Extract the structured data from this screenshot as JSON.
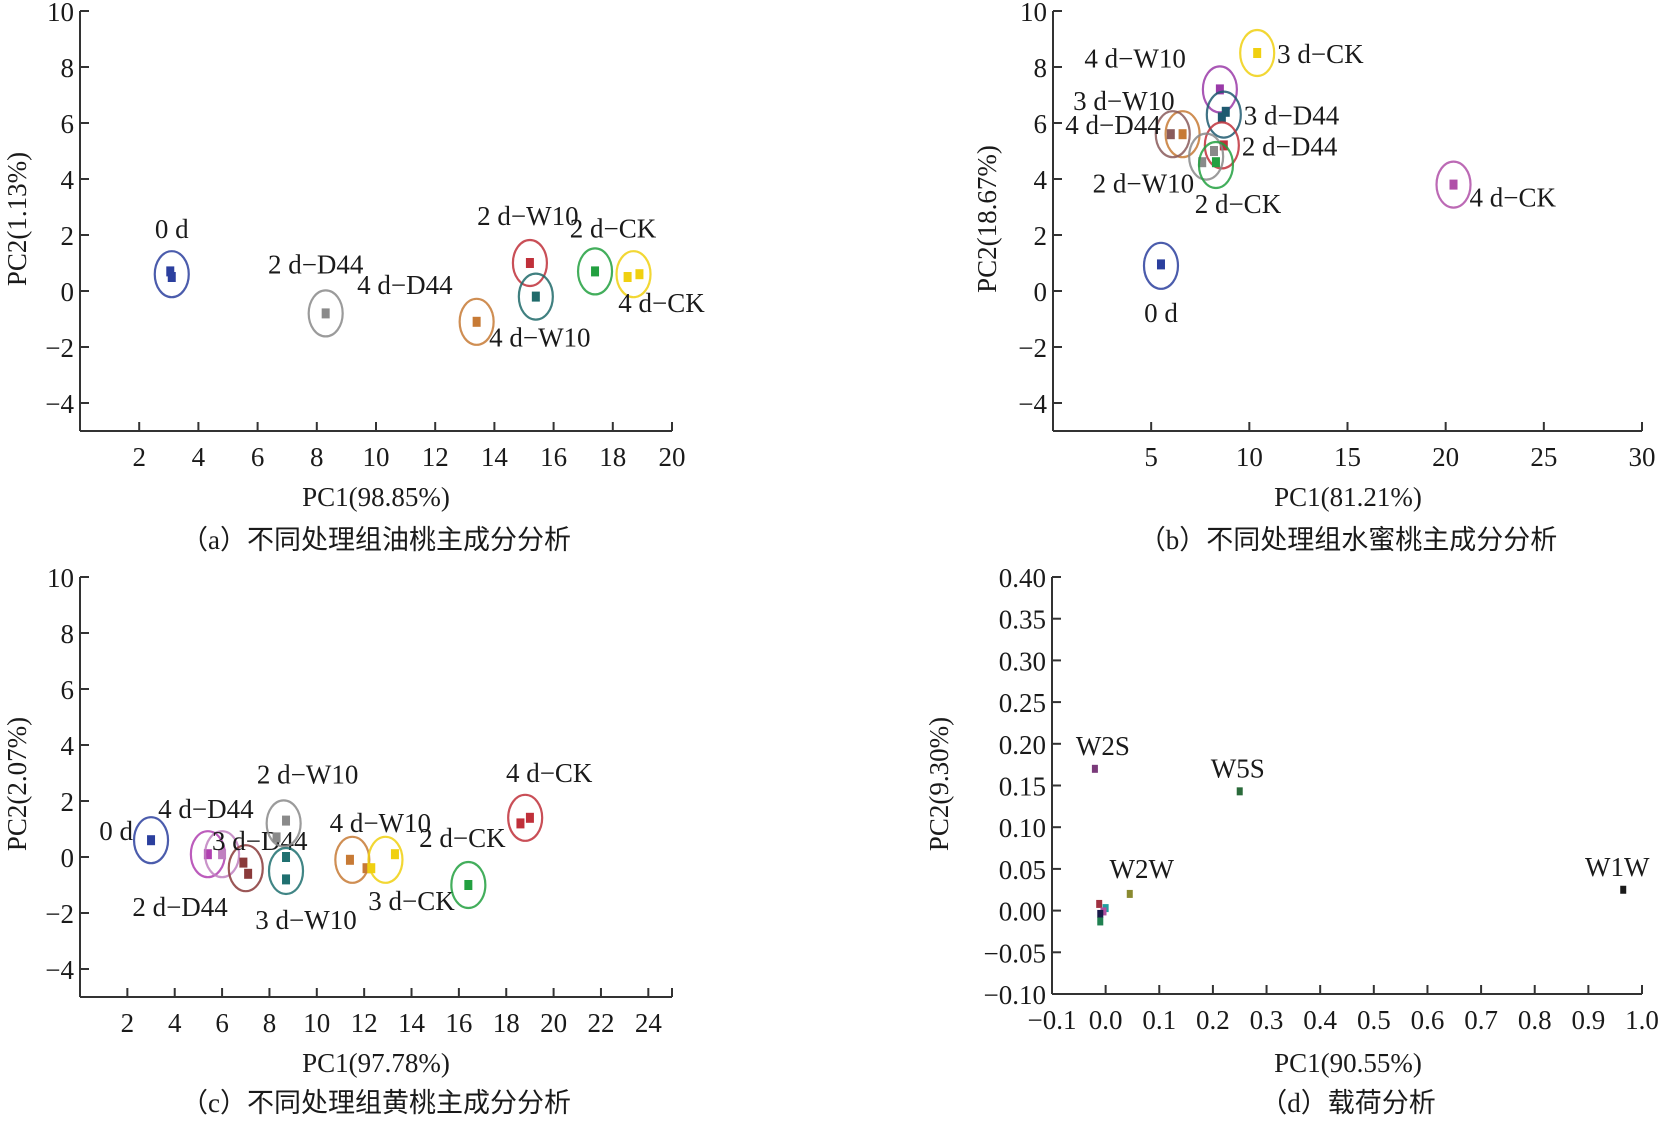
{
  "chart_data": [
    {
      "type": "scatter",
      "panel": "a",
      "caption": "（a）不同处理组油桃主成分分析",
      "xlabel": "PC1(98.85%)",
      "ylabel": "PC2(1.13%)",
      "xlim": [
        0,
        20
      ],
      "ylim": [
        -5,
        10
      ],
      "xticks": [
        2,
        4,
        6,
        8,
        10,
        12,
        14,
        16,
        18,
        20
      ],
      "yticks": [
        -4,
        -2,
        0,
        2,
        4,
        6,
        8,
        10
      ],
      "ytick_labels": [
        "−4",
        "−2",
        "0",
        "2",
        "4",
        "6",
        "8",
        "10"
      ],
      "groups": [
        {
          "name": "0 d",
          "color": "#2b3f9e",
          "center": [
            3.1,
            0.6
          ],
          "points": [
            [
              3.05,
              0.7
            ],
            [
              3.1,
              0.5
            ]
          ]
        },
        {
          "name": "2 d−D44",
          "color": "#8a8a8a",
          "center": [
            8.3,
            -0.8
          ],
          "points": [
            [
              8.3,
              -0.8
            ]
          ]
        },
        {
          "name": "4 d−D44",
          "color": "#c77a35",
          "center": [
            13.4,
            -1.1
          ],
          "points": [
            [
              13.4,
              -1.1
            ]
          ]
        },
        {
          "name": "2 d−W10",
          "color": "#c0303a",
          "center": [
            15.2,
            1.0
          ],
          "points": [
            [
              15.2,
              1.0
            ]
          ]
        },
        {
          "name": "4 d−W10",
          "color": "#1f6a6a",
          "center": [
            15.4,
            -0.2
          ],
          "points": [
            [
              15.4,
              -0.2
            ]
          ]
        },
        {
          "name": "2 d−CK",
          "color": "#22a040",
          "center": [
            17.4,
            0.7
          ],
          "points": [
            [
              17.4,
              0.7
            ]
          ]
        },
        {
          "name": "4 d−CK",
          "color": "#f0d010",
          "center": [
            18.7,
            0.6
          ],
          "points": [
            [
              18.5,
              0.5
            ],
            [
              18.9,
              0.6
            ]
          ]
        }
      ]
    },
    {
      "type": "scatter",
      "panel": "b",
      "caption": "（b）不同处理组水蜜桃主成分分析",
      "xlabel": "PC1(81.21%)",
      "ylabel": "PC2(18.67%)",
      "xlim": [
        0,
        30
      ],
      "ylim": [
        -5,
        10
      ],
      "xticks": [
        5,
        10,
        15,
        20,
        25,
        30
      ],
      "yticks": [
        -4,
        -2,
        0,
        2,
        4,
        6,
        8,
        10
      ],
      "ytick_labels": [
        "−4",
        "−2",
        "0",
        "2",
        "4",
        "6",
        "8",
        "10"
      ],
      "groups": [
        {
          "name": "0 d",
          "color": "#2b3f9e",
          "center": [
            5.5,
            0.9
          ],
          "points": [
            [
              5.5,
              0.95
            ]
          ]
        },
        {
          "name": "3 d−CK",
          "color": "#f0d010",
          "center": [
            10.4,
            8.5
          ],
          "points": [
            [
              10.4,
              8.5
            ]
          ]
        },
        {
          "name": "4 d−W10",
          "color": "#9a3aa8",
          "center": [
            8.5,
            7.2
          ],
          "points": [
            [
              8.5,
              7.2
            ]
          ]
        },
        {
          "name": "3 d−D44",
          "color": "#1f5a70",
          "center": [
            8.7,
            6.3
          ],
          "points": [
            [
              8.6,
              6.2
            ],
            [
              8.8,
              6.4
            ]
          ]
        },
        {
          "name": "3 d−W10",
          "color": "#c77a35",
          "center": [
            6.6,
            5.6
          ],
          "points": [
            [
              6.6,
              5.6
            ]
          ]
        },
        {
          "name": "4 d−D44",
          "color": "#8a5a5a",
          "center": [
            6.1,
            5.6
          ],
          "points": [
            [
              6.0,
              5.6
            ]
          ]
        },
        {
          "name": "2 d−D44",
          "color": "#c0303a",
          "center": [
            8.6,
            5.2
          ],
          "points": [
            [
              8.7,
              5.2
            ]
          ]
        },
        {
          "name": "2 d−W10",
          "color": "#8a8a8a",
          "center": [
            7.8,
            4.8
          ],
          "points": [
            [
              7.6,
              4.6
            ],
            [
              8.2,
              5.0
            ]
          ]
        },
        {
          "name": "2 d−CK",
          "color": "#22a040",
          "center": [
            8.3,
            4.5
          ],
          "points": [
            [
              8.3,
              4.6
            ]
          ]
        },
        {
          "name": "4 d−CK",
          "color": "#b050a8",
          "center": [
            20.4,
            3.8
          ],
          "points": [
            [
              20.4,
              3.8
            ]
          ]
        }
      ]
    },
    {
      "type": "scatter",
      "panel": "c",
      "caption": "（c）不同处理组黄桃主成分分析",
      "xlabel": "PC1(97.78%)",
      "ylabel": "PC2(2.07%)",
      "xlim": [
        0,
        25
      ],
      "ylim": [
        -5,
        10
      ],
      "xticks": [
        2,
        4,
        6,
        8,
        10,
        12,
        14,
        16,
        18,
        20,
        22,
        24
      ],
      "yticks": [
        -4,
        -2,
        0,
        2,
        4,
        6,
        8,
        10
      ],
      "ytick_labels": [
        "−4",
        "−2",
        "0",
        "2",
        "4",
        "6",
        "8",
        "10"
      ],
      "groups": [
        {
          "name": "0 d",
          "color": "#2b3f9e",
          "center": [
            3.0,
            0.6
          ],
          "points": [
            [
              3.0,
              0.6
            ]
          ]
        },
        {
          "name": "4 d−D44",
          "color": "#b040b0",
          "center": [
            5.4,
            0.1
          ],
          "points": [
            [
              5.4,
              0.1
            ]
          ]
        },
        {
          "name": "2 d−D44",
          "color": "#c080c0",
          "center": [
            6.0,
            0.1
          ],
          "points": [
            [
              6.0,
              0.1
            ]
          ]
        },
        {
          "name": "3 d−D44",
          "color": "#8a3a3a",
          "center": [
            7.0,
            -0.4
          ],
          "points": [
            [
              6.9,
              -0.2
            ],
            [
              7.1,
              -0.6
            ]
          ]
        },
        {
          "name": "2 d−W10",
          "color": "#8a8a8a",
          "center": [
            8.6,
            1.2
          ],
          "points": [
            [
              8.7,
              1.3
            ],
            [
              8.3,
              0.7
            ]
          ]
        },
        {
          "name": "3 d−W10",
          "color": "#1f7070",
          "center": [
            8.7,
            -0.5
          ],
          "points": [
            [
              8.7,
              0.0
            ],
            [
              8.7,
              -0.8
            ]
          ]
        },
        {
          "name": "4 d−W10",
          "color": "#c77a35",
          "center": [
            11.5,
            -0.1
          ],
          "points": [
            [
              11.4,
              -0.1
            ],
            [
              12.1,
              -0.4
            ]
          ]
        },
        {
          "name": "3 d−CK",
          "color": "#f0d010",
          "center": [
            12.9,
            -0.1
          ],
          "points": [
            [
              13.3,
              0.1
            ],
            [
              12.3,
              -0.4
            ]
          ]
        },
        {
          "name": "2 d−CK",
          "color": "#22a040",
          "center": [
            16.4,
            -1.0
          ],
          "points": [
            [
              16.4,
              -1.0
            ]
          ]
        },
        {
          "name": "4 d−CK",
          "color": "#c0303a",
          "center": [
            18.8,
            1.4
          ],
          "points": [
            [
              18.6,
              1.2
            ],
            [
              19.0,
              1.4
            ]
          ]
        }
      ]
    },
    {
      "type": "scatter",
      "panel": "d",
      "caption": "（d）载荷分析",
      "xlabel": "PC1(90.55%)",
      "ylabel": "PC2(9.30%)",
      "xlim": [
        -0.1,
        1.0
      ],
      "ylim": [
        -0.1,
        0.4
      ],
      "xticks": [
        -0.1,
        0.0,
        0.1,
        0.2,
        0.3,
        0.4,
        0.5,
        0.6,
        0.7,
        0.8,
        0.9,
        1.0
      ],
      "xtick_labels": [
        "−0.1",
        "0.0",
        "0.1",
        "0.2",
        "0.3",
        "0.4",
        "0.5",
        "0.6",
        "0.7",
        "0.8",
        "0.9",
        "1.0"
      ],
      "yticks": [
        -0.1,
        -0.05,
        0.0,
        0.05,
        0.1,
        0.15,
        0.2,
        0.25,
        0.3,
        0.35,
        0.4
      ],
      "ytick_labels": [
        "−0.10",
        "−0.05",
        "0.00",
        "0.05",
        "0.10",
        "0.15",
        "0.20",
        "0.25",
        "0.30",
        "0.35",
        "0.40"
      ],
      "points": [
        {
          "name": "W2S",
          "color": "#7a3a7a",
          "x": -0.02,
          "y": 0.17,
          "labeled": true
        },
        {
          "name": "W5S",
          "color": "#2a6a3a",
          "x": 0.25,
          "y": 0.143,
          "labeled": true
        },
        {
          "name": "W2W",
          "color": "#8a8a30",
          "x": 0.045,
          "y": 0.02,
          "labeled": true
        },
        {
          "name": "W1W",
          "color": "#1a1a1a",
          "x": 0.965,
          "y": 0.025,
          "labeled": true
        },
        {
          "name": "",
          "color": "#a03040",
          "x": -0.012,
          "y": 0.008,
          "labeled": false
        },
        {
          "name": "",
          "color": "#20a0a0",
          "x": 0.0,
          "y": 0.003,
          "labeled": false
        },
        {
          "name": "",
          "color": "#b050a0",
          "x": -0.004,
          "y": -0.001,
          "labeled": false
        },
        {
          "name": "",
          "color": "#1a1a4a",
          "x": -0.01,
          "y": -0.004,
          "labeled": false
        },
        {
          "name": "",
          "color": "#208050",
          "x": -0.01,
          "y": -0.013,
          "labeled": false
        }
      ]
    }
  ]
}
